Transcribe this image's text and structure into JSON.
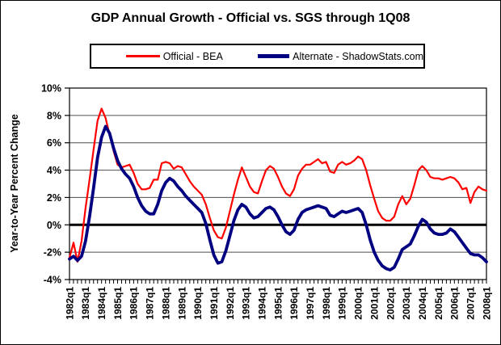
{
  "figure": {
    "title": "GDP Annual Growth - Official vs. SGS through 1Q08",
    "y_axis_title": "Year-to-Year Percent Change"
  },
  "legend": {
    "items": [
      {
        "label": "Official - BEA",
        "color": "#ff0000",
        "thickness": 3
      },
      {
        "label": "Alternate - ShadowStats.com",
        "color": "#000080",
        "thickness": 5
      }
    ]
  },
  "colors": {
    "official_line": "#ff0000",
    "alternate_line": "#000080",
    "gridline": "#4d4d4d",
    "zero_line": "#000000",
    "axis_border": "#000000",
    "text": "#000000",
    "background": "#ffffff"
  },
  "chart_data": {
    "type": "line",
    "title": "GDP Annual Growth - Official vs. SGS through 1Q08",
    "xlabel": "",
    "ylabel": "Year-to-Year Percent Change",
    "ylim": [
      -4,
      10
    ],
    "grid": true,
    "legend_position": "top",
    "x_start": "1982q1",
    "x_end": "2008q1",
    "x_frequency": "quarterly",
    "x_tick_labels": [
      "1982q1",
      "1983q1",
      "1984q1",
      "1985q1",
      "1986q1",
      "1987q1",
      "1988q1",
      "1989q1",
      "1990q1",
      "1991q1",
      "1992q1",
      "1993q1",
      "1994q1",
      "1995q1",
      "1996q1",
      "1997q1",
      "1998q1",
      "1999q1",
      "2000q1",
      "2001q1",
      "2002q1",
      "2003q1",
      "2004q1",
      "2005q1",
      "2006q1",
      "2007q1",
      "2008q1"
    ],
    "x_ticks_per_label": 4,
    "y_ticks": [
      {
        "value": 10,
        "label": "10%"
      },
      {
        "value": 8,
        "label": "8%"
      },
      {
        "value": 6,
        "label": "6%"
      },
      {
        "value": 4,
        "label": "4%"
      },
      {
        "value": 2,
        "label": "2%"
      },
      {
        "value": 0,
        "label": "0%"
      },
      {
        "value": -2,
        "label": "-2%"
      },
      {
        "value": -4,
        "label": "-4%"
      }
    ],
    "series": [
      {
        "name": "Official - BEA",
        "color": "#ff0000",
        "line_width": 2.2,
        "values": [
          -2.4,
          -1.3,
          -2.7,
          -1.2,
          1.2,
          3.3,
          5.5,
          7.6,
          8.5,
          7.8,
          6.6,
          5.4,
          4.4,
          4.2,
          4.3,
          4.4,
          3.8,
          3.0,
          2.6,
          2.6,
          2.7,
          3.3,
          3.3,
          4.5,
          4.6,
          4.5,
          4.1,
          4.3,
          4.2,
          3.7,
          3.2,
          2.8,
          2.5,
          2.2,
          1.5,
          0.5,
          -0.4,
          -0.9,
          -1.0,
          -0.2,
          1.0,
          2.2,
          3.3,
          4.2,
          3.5,
          2.8,
          2.4,
          2.3,
          3.2,
          4.0,
          4.3,
          4.1,
          3.5,
          2.8,
          2.3,
          2.1,
          2.6,
          3.6,
          4.1,
          4.4,
          4.4,
          4.6,
          4.8,
          4.5,
          4.6,
          3.9,
          3.8,
          4.4,
          4.6,
          4.4,
          4.5,
          4.7,
          5.0,
          4.8,
          4.0,
          2.9,
          1.9,
          1.0,
          0.5,
          0.3,
          0.3,
          0.6,
          1.5,
          2.1,
          1.5,
          1.9,
          2.9,
          4.0,
          4.3,
          4.0,
          3.5,
          3.4,
          3.4,
          3.3,
          3.4,
          3.5,
          3.4,
          3.1,
          2.6,
          2.7,
          1.6,
          2.4,
          2.8,
          2.6,
          2.5
        ]
      },
      {
        "name": "Alternate - ShadowStats.com",
        "color": "#000080",
        "line_width": 3.8,
        "values": [
          -2.5,
          -2.3,
          -2.6,
          -2.3,
          -1.2,
          0.6,
          2.7,
          4.9,
          6.4,
          7.2,
          6.7,
          5.6,
          4.7,
          4.1,
          3.7,
          3.4,
          2.8,
          2.0,
          1.4,
          1.0,
          0.8,
          0.8,
          1.5,
          2.5,
          3.1,
          3.4,
          3.2,
          2.8,
          2.5,
          2.1,
          1.8,
          1.5,
          1.2,
          0.9,
          0.1,
          -1.1,
          -2.2,
          -2.8,
          -2.7,
          -1.9,
          -0.8,
          0.3,
          1.1,
          1.5,
          1.3,
          0.8,
          0.5,
          0.6,
          0.9,
          1.2,
          1.3,
          1.1,
          0.6,
          0.0,
          -0.5,
          -0.7,
          -0.4,
          0.4,
          0.9,
          1.1,
          1.2,
          1.3,
          1.4,
          1.3,
          1.2,
          0.7,
          0.6,
          0.8,
          1.0,
          0.9,
          1.0,
          1.1,
          1.2,
          0.9,
          0.0,
          -1.1,
          -2.0,
          -2.6,
          -3.0,
          -3.2,
          -3.3,
          -3.1,
          -2.5,
          -1.8,
          -1.6,
          -1.4,
          -0.8,
          -0.1,
          0.4,
          0.2,
          -0.3,
          -0.6,
          -0.7,
          -0.7,
          -0.6,
          -0.3,
          -0.5,
          -0.9,
          -1.3,
          -1.7,
          -2.1,
          -2.2,
          -2.2,
          -2.4,
          -2.7
        ]
      }
    ]
  }
}
